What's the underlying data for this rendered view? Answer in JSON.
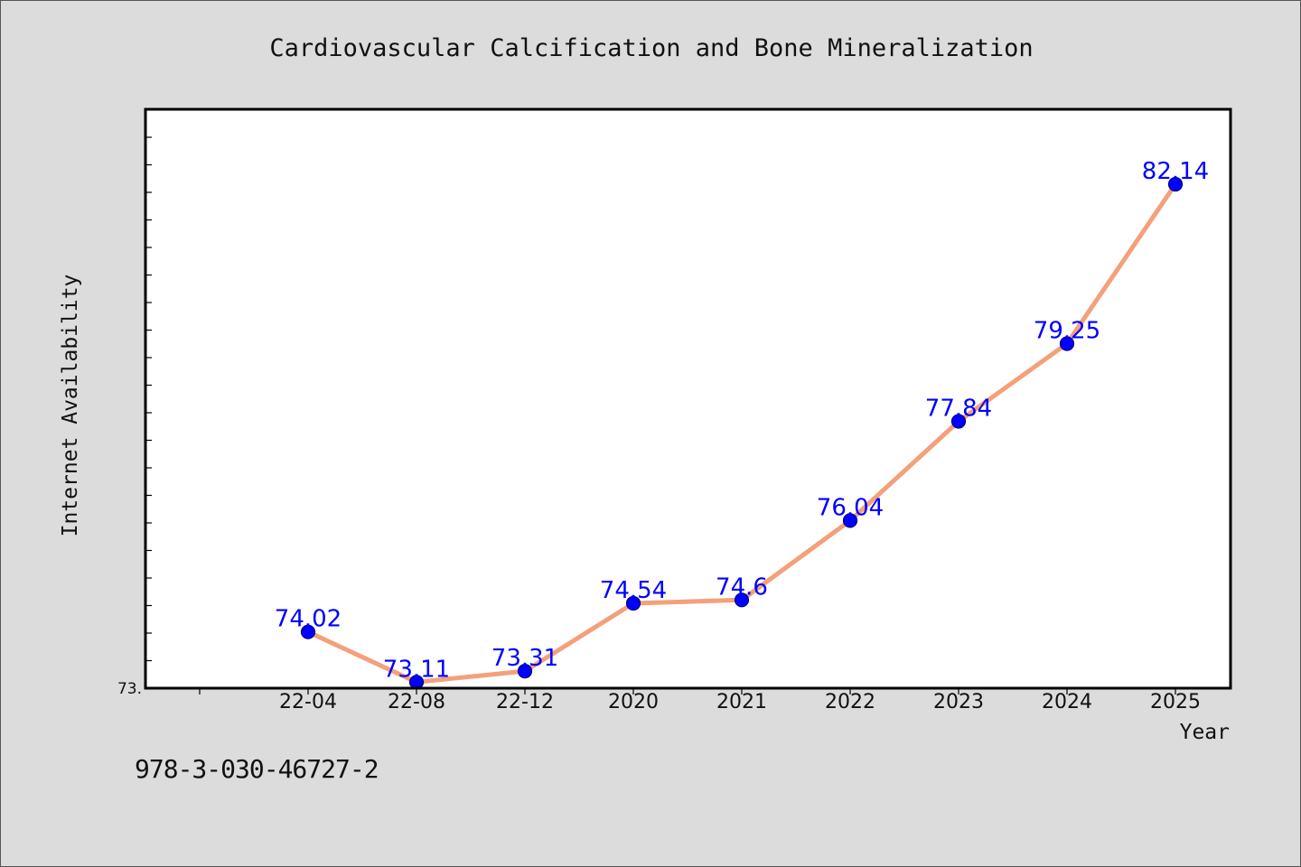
{
  "chart_data": {
    "type": "line",
    "title": "Cardiovascular Calcification and Bone Mineralization",
    "xlabel": "Year",
    "ylabel": "Internet Availability",
    "categories": [
      "22-04",
      "22-08",
      "22-12",
      "2020",
      "2021",
      "2022",
      "2023",
      "2024",
      "2025"
    ],
    "series": [
      {
        "values": [
          74.02,
          73.11,
          73.31,
          74.54,
          74.6,
          76.04,
          77.84,
          79.25,
          82.14
        ],
        "labels": [
          "74.02",
          "73.11",
          "73.31",
          "74.54",
          "74.6",
          "76.04",
          "77.84",
          "79.25",
          "82.14"
        ]
      }
    ],
    "ylim": [
      73.0,
      83.5
    ],
    "y_tick_label": "73.",
    "grid": false,
    "legend": "none",
    "colors": {
      "line": "#f4a07a",
      "marker": "#0000ff",
      "data_label": "#0000ff",
      "plot_background": "#ffffff",
      "page_background": "#dcdcdc"
    }
  },
  "footer": {
    "code": "978-3-030-46727-2"
  }
}
